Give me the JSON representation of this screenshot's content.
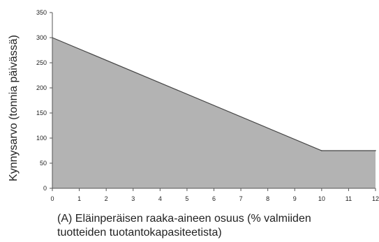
{
  "chart_data": {
    "type": "area",
    "x": [
      0,
      10,
      12
    ],
    "y": [
      300,
      75,
      75
    ],
    "xlim": [
      0,
      12
    ],
    "ylim": [
      0,
      350
    ],
    "x_ticks": [
      "0",
      "1",
      "2",
      "3",
      "4",
      "5",
      "6",
      "7",
      "8",
      "9",
      "10",
      "11",
      "12"
    ],
    "y_ticks": [
      "0",
      "50",
      "100",
      "150",
      "200",
      "250",
      "300",
      "350"
    ],
    "ylabel": "Kynnysarvo (tonnia päivässä)",
    "xlabel_lines": [
      "(A) Eläinperäisen raaka-aineen osuus (% valmiiden",
      "tuotteiden tuotantokapasiteetista)"
    ],
    "grid": false,
    "colors": {
      "fill": "#b3b3b3",
      "line": "#444444",
      "axis": "#555555"
    }
  }
}
